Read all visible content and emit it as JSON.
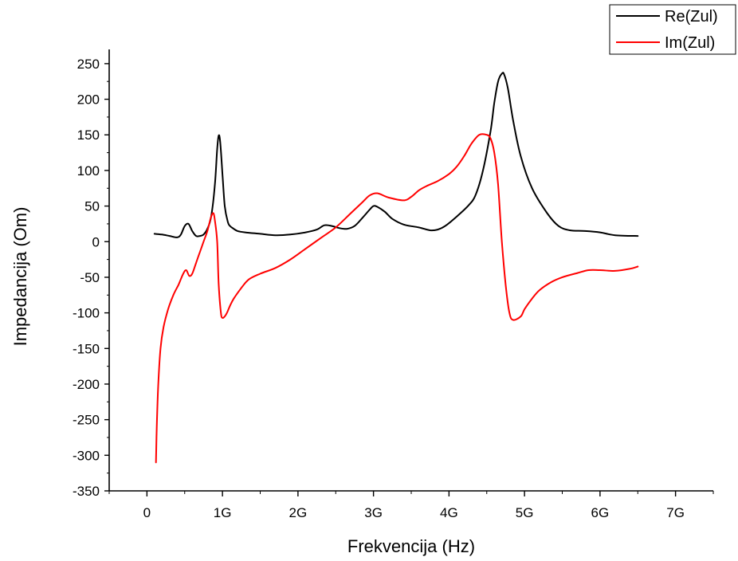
{
  "chart_data": {
    "type": "line",
    "title": "",
    "xlabel": "Frekvencija (Hz)",
    "ylabel": "Impedancija (Om)",
    "xlim": [
      -0.5,
      7.5
    ],
    "ylim": [
      -350,
      270
    ],
    "x_ticks": [
      {
        "value": 0,
        "label": "0"
      },
      {
        "value": 1,
        "label": "1G"
      },
      {
        "value": 2,
        "label": "2G"
      },
      {
        "value": 3,
        "label": "3G"
      },
      {
        "value": 4,
        "label": "4G"
      },
      {
        "value": 5,
        "label": "5G"
      },
      {
        "value": 6,
        "label": "6G"
      },
      {
        "value": 7,
        "label": "7G"
      }
    ],
    "y_ticks": [
      250,
      200,
      150,
      100,
      50,
      0,
      -50,
      -100,
      -150,
      -200,
      -250,
      -300,
      -350
    ],
    "grid": false,
    "legend_position": "top-right",
    "series": [
      {
        "name": "Re(Zul)",
        "color": "#000000",
        "x": [
          0.1,
          0.2,
          0.3,
          0.4,
          0.45,
          0.5,
          0.55,
          0.6,
          0.65,
          0.7,
          0.75,
          0.8,
          0.85,
          0.9,
          0.93,
          0.95,
          0.97,
          1.0,
          1.03,
          1.07,
          1.1,
          1.15,
          1.2,
          1.3,
          1.5,
          1.7,
          1.9,
          2.1,
          2.25,
          2.35,
          2.45,
          2.55,
          2.65,
          2.75,
          2.85,
          2.95,
          3.0,
          3.05,
          3.15,
          3.25,
          3.4,
          3.6,
          3.75,
          3.85,
          3.95,
          4.1,
          4.25,
          4.35,
          4.45,
          4.55,
          4.6,
          4.65,
          4.7,
          4.73,
          4.78,
          4.85,
          4.95,
          5.1,
          5.3,
          5.45,
          5.6,
          5.8,
          6.0,
          6.2,
          6.5
        ],
        "y": [
          11,
          10,
          8,
          6,
          10,
          22,
          25,
          15,
          8,
          8,
          10,
          18,
          35,
          80,
          130,
          149,
          140,
          95,
          50,
          28,
          22,
          18,
          15,
          13,
          11,
          9,
          10,
          13,
          17,
          23,
          22,
          19,
          18,
          22,
          33,
          45,
          50,
          49,
          42,
          32,
          24,
          20,
          16,
          17,
          22,
          35,
          50,
          65,
          100,
          155,
          195,
          225,
          236,
          235,
          215,
          170,
          120,
          75,
          40,
          22,
          16,
          15,
          13,
          9,
          8
        ]
      },
      {
        "name": "Im(Zul)",
        "color": "#ff0000",
        "x": [
          0.12,
          0.13,
          0.15,
          0.18,
          0.22,
          0.28,
          0.35,
          0.42,
          0.48,
          0.52,
          0.56,
          0.6,
          0.65,
          0.7,
          0.75,
          0.8,
          0.85,
          0.88,
          0.9,
          0.93,
          0.95,
          0.98,
          1.0,
          1.03,
          1.06,
          1.1,
          1.15,
          1.25,
          1.35,
          1.5,
          1.7,
          1.9,
          2.1,
          2.3,
          2.5,
          2.7,
          2.85,
          2.95,
          3.05,
          3.2,
          3.4,
          3.5,
          3.6,
          3.7,
          3.85,
          4.0,
          4.1,
          4.2,
          4.3,
          4.4,
          4.5,
          4.55,
          4.6,
          4.65,
          4.7,
          4.75,
          4.8,
          4.85,
          4.95,
          5.0,
          5.1,
          5.2,
          5.35,
          5.5,
          5.7,
          5.85,
          6.0,
          6.2,
          6.4,
          6.5
        ],
        "y": [
          -310,
          -260,
          -200,
          -150,
          -120,
          -95,
          -75,
          -60,
          -45,
          -40,
          -48,
          -45,
          -30,
          -15,
          0,
          15,
          35,
          40,
          30,
          0,
          -60,
          -100,
          -107,
          -105,
          -100,
          -90,
          -80,
          -65,
          -53,
          -45,
          -37,
          -25,
          -10,
          5,
          20,
          40,
          55,
          65,
          68,
          62,
          58,
          63,
          72,
          78,
          85,
          95,
          105,
          120,
          138,
          150,
          150,
          145,
          125,
          80,
          0,
          -60,
          -100,
          -110,
          -105,
          -95,
          -80,
          -68,
          -57,
          -50,
          -44,
          -40,
          -40,
          -41,
          -38,
          -35
        ]
      }
    ]
  }
}
